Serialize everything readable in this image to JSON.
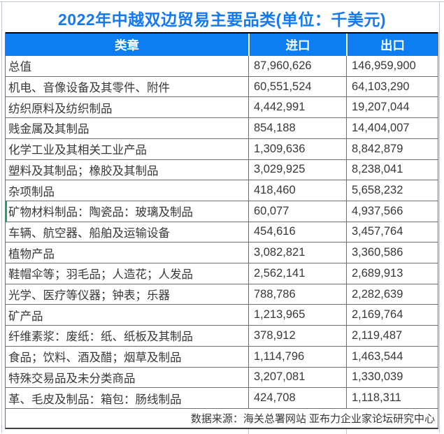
{
  "title": "2022年中越双边贸易主要品类(单位：千美元)",
  "table": {
    "columns": [
      "类章",
      "进口",
      "出口"
    ],
    "rows": [
      {
        "category": "总值",
        "import": "87,960,626",
        "export": "146,959,900"
      },
      {
        "category": "机电、音像设备及其零件、附件",
        "import": "60,551,524",
        "export": "64,103,290"
      },
      {
        "category": "纺织原料及纺织制品",
        "import": "4,442,991",
        "export": "19,207,044"
      },
      {
        "category": "贱金属及其制品",
        "import": "854,188",
        "export": "14,404,007"
      },
      {
        "category": "化学工业及其相关工业产品",
        "import": "1,309,636",
        "export": "8,842,879"
      },
      {
        "category": "塑料及其制品；橡胶及其制品",
        "import": "3,029,925",
        "export": "8,238,041"
      },
      {
        "category": "杂项制品",
        "import": "418,460",
        "export": "5,658,232"
      },
      {
        "category": "矿物材料制品：陶瓷品：玻璃及制品",
        "import": "60,077",
        "export": "4,937,566",
        "green_flag": true
      },
      {
        "category": "车辆、航空器、船舶及运输设备",
        "import": "454,616",
        "export": "3,457,764"
      },
      {
        "category": "植物产品",
        "import": "3,082,821",
        "export": "3,360,586"
      },
      {
        "category": "鞋帽伞等；羽毛品；人造花；人发品",
        "import": "2,562,141",
        "export": "2,689,913"
      },
      {
        "category": "光学、医疗等仪器；钟表；乐器",
        "import": "788,786",
        "export": "2,282,639"
      },
      {
        "category": "矿产品",
        "import": "1,213,965",
        "export": "2,169,764"
      },
      {
        "category": "纤维素浆：废纸：纸、纸板及其制品",
        "import": "378,912",
        "export": "2,119,487"
      },
      {
        "category": "食品；饮料、酒及醋；烟草及制品",
        "import": "1,114,796",
        "export": "1,463,544"
      },
      {
        "category": "特殊交易品及未分类商品",
        "import": "3,207,081",
        "export": "1,330,039"
      },
      {
        "category": "革、毛皮及制品：箱包：肠线制品",
        "import": "424,708",
        "export": "1,118,311"
      }
    ]
  },
  "footer": {
    "source": "数据来源：海关总署网站 亚布力企业家论坛研究中心"
  },
  "colors": {
    "title_blue": "#1479f2",
    "header_blue": "#0d7ef2",
    "flag_green": "#21a464",
    "header_text": "#ffffff",
    "body_text": "#383838"
  }
}
